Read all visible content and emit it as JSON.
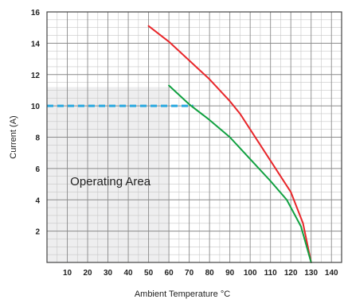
{
  "chart_data": {
    "type": "line",
    "xlabel": "Ambient Temperature °C",
    "ylabel": "Current (A)",
    "xlim": [
      0,
      145
    ],
    "ylim": [
      0,
      16
    ],
    "x_ticks": [
      "10",
      "20",
      "30",
      "40",
      "50",
      "60",
      "70",
      "80",
      "90",
      "100",
      "110",
      "120",
      "130",
      "140"
    ],
    "y_ticks": [
      "2",
      "4",
      "6",
      "8",
      "10",
      "12",
      "14",
      "16"
    ],
    "grid": true,
    "series": [
      {
        "color": "#e8262a",
        "x": [
          50,
          60,
          70,
          80,
          90,
          95,
          100,
          110,
          120,
          126,
          130
        ],
        "y": [
          15.1,
          14.1,
          12.9,
          11.7,
          10.3,
          9.5,
          8.5,
          6.5,
          4.5,
          2.5,
          0
        ]
      },
      {
        "color": "#10a040",
        "x": [
          60,
          70,
          80,
          90,
          100,
          110,
          118,
          125,
          130
        ],
        "y": [
          11.3,
          10.1,
          9.1,
          8.0,
          6.6,
          5.2,
          4.0,
          2.3,
          0
        ]
      }
    ],
    "reference_line": {
      "y": 10,
      "x_start": 0,
      "x_end": 72,
      "color": "#29a9e0",
      "style": "dashed"
    },
    "shaded_region": {
      "label": "Operating Area",
      "x": [
        0,
        60
      ],
      "y": [
        0,
        11.2
      ],
      "color": "#eeeeef"
    }
  }
}
